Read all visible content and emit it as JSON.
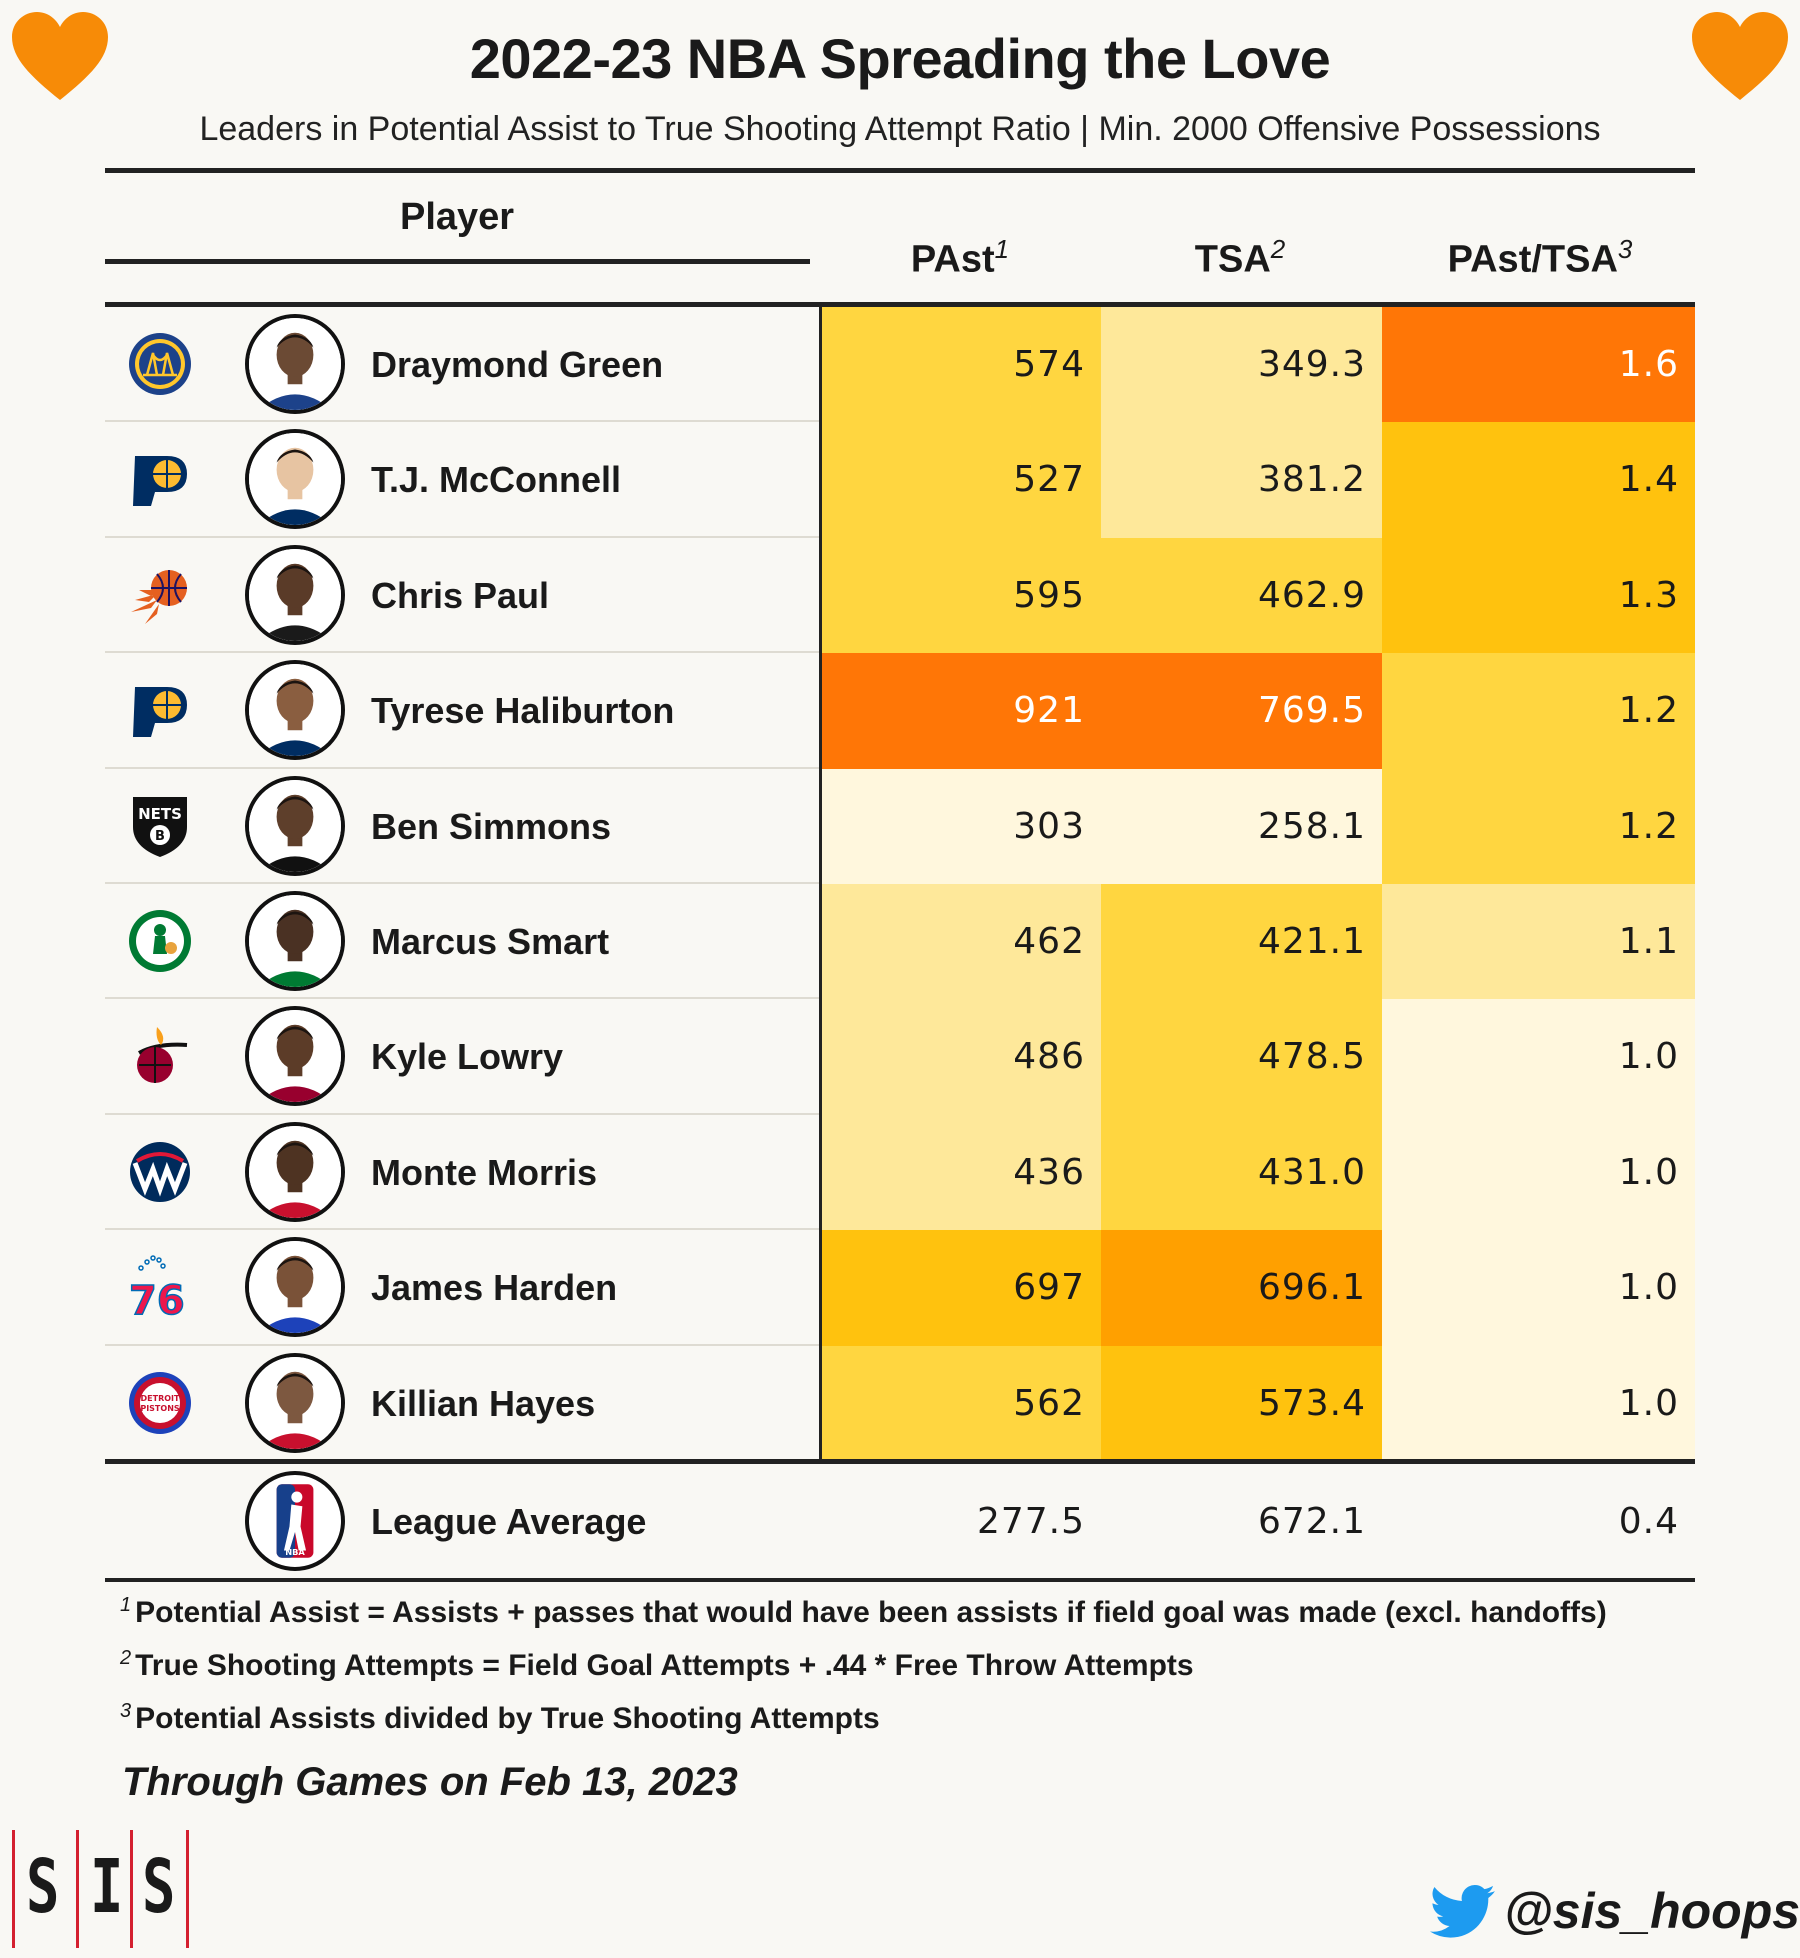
{
  "title": "2022-23 NBA Spreading the Love",
  "subtitle": "Leaders in Potential Assist to True Shooting Attempt Ratio | Min. 2000 Offensive Possessions",
  "headers": {
    "player": "Player",
    "past": "PAst",
    "past_sup": "1",
    "tsa": "TSA",
    "tsa_sup": "2",
    "ratio": "PAst/TSA",
    "ratio_sup": "3"
  },
  "chart_data": {
    "type": "table",
    "columns": [
      "Player",
      "PAst",
      "TSA",
      "PAst/TSA"
    ],
    "rows": [
      {
        "team": "Warriors",
        "player": "Draymond Green",
        "past": "574",
        "tsa": "349.3",
        "ratio": "1.6",
        "past_num": 574,
        "tsa_num": 349.3,
        "ratio_num": 1.6
      },
      {
        "team": "Pacers",
        "player": "T.J. McConnell",
        "past": "527",
        "tsa": "381.2",
        "ratio": "1.4",
        "past_num": 527,
        "tsa_num": 381.2,
        "ratio_num": 1.4
      },
      {
        "team": "Suns",
        "player": "Chris Paul",
        "past": "595",
        "tsa": "462.9",
        "ratio": "1.3",
        "past_num": 595,
        "tsa_num": 462.9,
        "ratio_num": 1.3
      },
      {
        "team": "Pacers",
        "player": "Tyrese Haliburton",
        "past": "921",
        "tsa": "769.5",
        "ratio": "1.2",
        "past_num": 921,
        "tsa_num": 769.5,
        "ratio_num": 1.2
      },
      {
        "team": "Nets",
        "player": "Ben Simmons",
        "past": "303",
        "tsa": "258.1",
        "ratio": "1.2",
        "past_num": 303,
        "tsa_num": 258.1,
        "ratio_num": 1.2
      },
      {
        "team": "Celtics",
        "player": "Marcus Smart",
        "past": "462",
        "tsa": "421.1",
        "ratio": "1.1",
        "past_num": 462,
        "tsa_num": 421.1,
        "ratio_num": 1.1
      },
      {
        "team": "Heat",
        "player": "Kyle Lowry",
        "past": "486",
        "tsa": "478.5",
        "ratio": "1.0",
        "past_num": 486,
        "tsa_num": 478.5,
        "ratio_num": 1.0
      },
      {
        "team": "Wizards",
        "player": "Monte Morris",
        "past": "436",
        "tsa": "431.0",
        "ratio": "1.0",
        "past_num": 436,
        "tsa_num": 431.0,
        "ratio_num": 1.0
      },
      {
        "team": "76ers",
        "player": "James Harden",
        "past": "697",
        "tsa": "696.1",
        "ratio": "1.0",
        "past_num": 697,
        "tsa_num": 696.1,
        "ratio_num": 1.0
      },
      {
        "team": "Pistons",
        "player": "Killian Hayes",
        "past": "562",
        "tsa": "573.4",
        "ratio": "1.0",
        "past_num": 562,
        "tsa_num": 573.4,
        "ratio_num": 1.0
      }
    ],
    "league_average": {
      "label": "League Average",
      "past": "277.5",
      "tsa": "672.1",
      "ratio": "0.4"
    }
  },
  "colors": {
    "scale": [
      "#fff7dd",
      "#fee89a",
      "#ffd640",
      "#ffc20e",
      "#ffa000",
      "#ff7606"
    ],
    "heart": "#f78b07",
    "accent_red": "#d4202f",
    "twitter": "#1d9bf0"
  },
  "footnotes": {
    "f1_sup": "1",
    "f1": "Potential Assist = Assists + passes that would have been assists if field goal was made (excl. handoffs)",
    "f2_sup": "2",
    "f2": "True Shooting Attempts = Field Goal Attempts + .44 * Free Throw Attempts",
    "f3_sup": "3",
    "f3": "Potential Assists divided by True Shooting Attempts"
  },
  "through": "Through Games on Feb 13, 2023",
  "brand": {
    "l1": "S",
    "l2": "I",
    "l3": "S"
  },
  "twitter_handle": "@sis_hoops",
  "icons": {
    "heart": "heart-icon",
    "twitter": "twitter-bird-icon",
    "nba": "nba-logo-icon"
  }
}
